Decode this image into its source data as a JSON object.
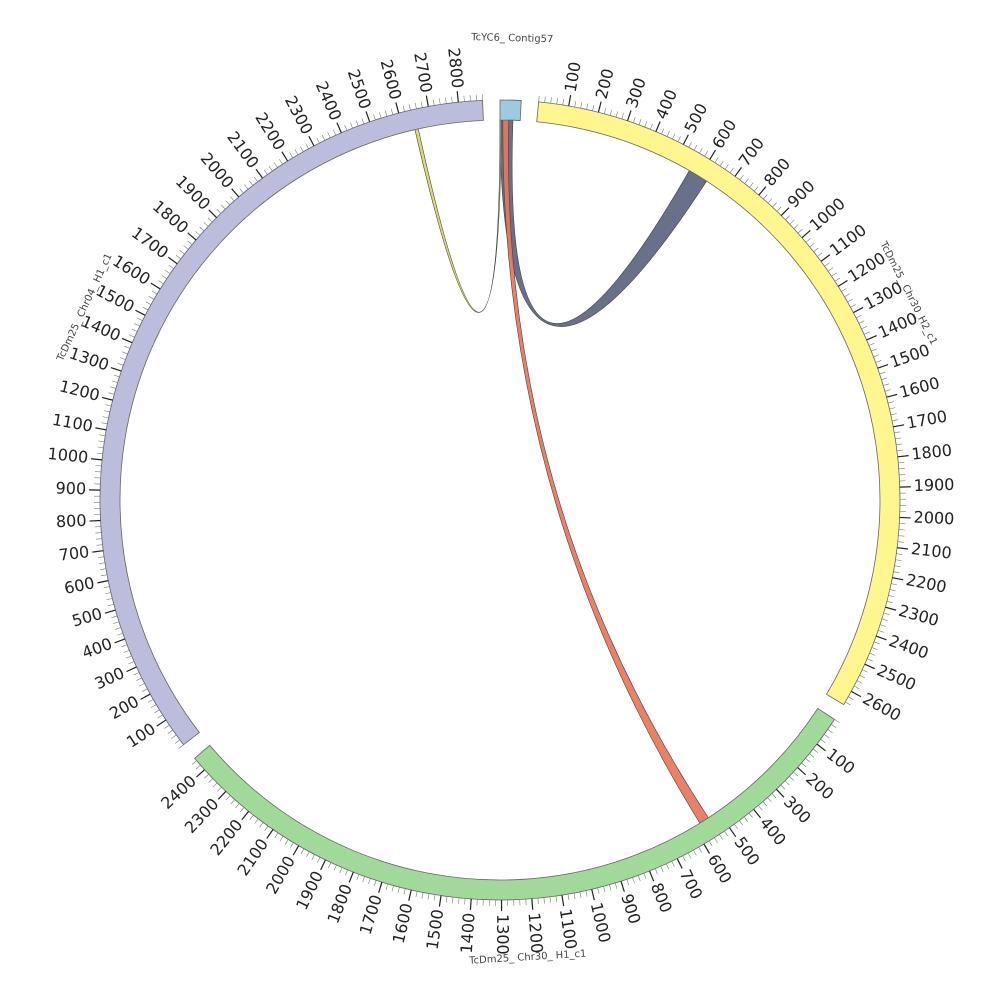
{
  "chart_data": {
    "type": "chord",
    "segments": [
      {
        "name": "TcYC6_ Contig57",
        "color": "#9ecae1",
        "length": 70,
        "ticks": []
      },
      {
        "name": "TcDm25_ Chr30_H2_c1",
        "color": "#fff68f",
        "length": 2650,
        "ticks": [
          100,
          200,
          300,
          400,
          500,
          600,
          700,
          800,
          900,
          1000,
          1100,
          1200,
          1300,
          1400,
          1500,
          1600,
          1700,
          1800,
          1900,
          2000,
          2100,
          2200,
          2300,
          2400,
          2500,
          2600
        ],
        "links": [
          {
            "color": "#5c6480",
            "source": [
              0,
              45
            ],
            "target": [
              560,
              630
            ]
          }
        ]
      },
      {
        "name": "TcDm25_ Chr30_ H1_c1",
        "color": "#a1d99b",
        "length": 2450,
        "ticks": [
          100,
          200,
          300,
          400,
          500,
          600,
          700,
          800,
          900,
          1000,
          1100,
          1200,
          1300,
          1400,
          1500,
          1600,
          1700,
          1800,
          1900,
          2000,
          2100,
          2200,
          2300,
          2400
        ],
        "links": [
          {
            "color": "#e8765a",
            "source": [
              10,
              30
            ],
            "target": [
              540,
              575
            ]
          }
        ]
      },
      {
        "name": "TcDm25_ Chr04_ H1_c1",
        "color": "#bcbddc",
        "length": 2880,
        "ticks": [
          100,
          200,
          300,
          400,
          500,
          600,
          700,
          800,
          900,
          1000,
          1100,
          1200,
          1300,
          1400,
          1500,
          1600,
          1700,
          1800,
          1900,
          2000,
          2100,
          2200,
          2300,
          2400,
          2500,
          2600,
          2700,
          2800
        ],
        "links": [
          {
            "color": "#d8d860",
            "source": [
              0,
              4
            ],
            "target": [
              2640,
              2652
            ]
          }
        ]
      }
    ]
  }
}
